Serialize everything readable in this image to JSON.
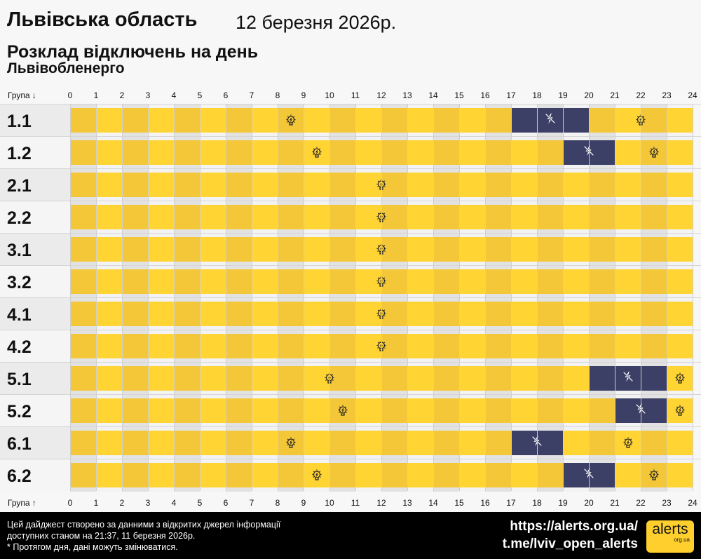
{
  "header": {
    "title": "Львівська область",
    "date": "12 березня 2026р.",
    "subtitle": "Розклад відключень на день",
    "provider": "Львівобленерго"
  },
  "axis": {
    "top_label": "Група ↓",
    "bottom_label": "Група ↑",
    "hours": [
      "0",
      "1",
      "2",
      "3",
      "4",
      "5",
      "6",
      "7",
      "8",
      "9",
      "10",
      "11",
      "12",
      "13",
      "14",
      "15",
      "16",
      "17",
      "18",
      "19",
      "20",
      "21",
      "22",
      "23",
      "24"
    ]
  },
  "colors": {
    "power_on": "#ffd433",
    "power_on_alt": "#f3c737",
    "outage": "#3c3f66"
  },
  "icons": {
    "power_on": "lightbulb-icon",
    "outage": "power-off-icon"
  },
  "groups": [
    {
      "name": "1.1",
      "outages": [
        [
          17,
          20
        ]
      ]
    },
    {
      "name": "1.2",
      "outages": [
        [
          19,
          21
        ]
      ]
    },
    {
      "name": "2.1",
      "outages": []
    },
    {
      "name": "2.2",
      "outages": []
    },
    {
      "name": "3.1",
      "outages": []
    },
    {
      "name": "3.2",
      "outages": []
    },
    {
      "name": "4.1",
      "outages": []
    },
    {
      "name": "4.2",
      "outages": []
    },
    {
      "name": "5.1",
      "outages": [
        [
          20,
          23
        ]
      ]
    },
    {
      "name": "5.2",
      "outages": [
        [
          21,
          23
        ]
      ]
    },
    {
      "name": "6.1",
      "outages": [
        [
          17,
          19
        ]
      ]
    },
    {
      "name": "6.2",
      "outages": [
        [
          19,
          21
        ]
      ]
    }
  ],
  "footer": {
    "line1": "Цей дайджест створено за данними з відкритих джерел інформації",
    "line2": "доступних станом на 21:37, 11 березня 2026р.",
    "line3": "* Протягом дня, дані можуть змінюватися.",
    "link1": "https://alerts.org.ua/",
    "link2": "t.me/lviv_open_alerts",
    "logo_text": "alerts",
    "logo_sub": "org.ua"
  }
}
